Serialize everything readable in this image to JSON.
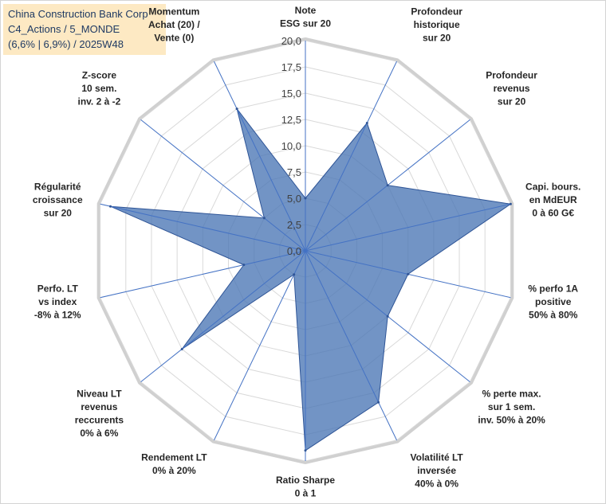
{
  "info": {
    "line1": "China Construction Bank Corp",
    "line2": "C4_Actions / 5_MONDE",
    "line3": "(6,6% | 6,9%) / 2025W48"
  },
  "chart_data": {
    "type": "radar",
    "title": "",
    "rmax": 20,
    "tick_step": 2.5,
    "ticks": [
      "0,0",
      "2,5",
      "5,0",
      "7,5",
      "10,0",
      "12,5",
      "15,0",
      "17,5",
      "20,0"
    ],
    "axes": [
      {
        "label": [
          "Note",
          "ESG sur 20"
        ],
        "value": 5.0
      },
      {
        "label": [
          "Profondeur",
          "historique",
          "sur 20"
        ],
        "value": 13.5
      },
      {
        "label": [
          "Profondeur",
          "revenus",
          "sur 20"
        ],
        "value": 10.0
      },
      {
        "label": [
          "Capi. bours.",
          "en MdEUR",
          "0 à 60 G€"
        ],
        "value": 20.0
      },
      {
        "label": [
          "% perfo 1A",
          "positive",
          "50% à 80%"
        ],
        "value": 10.0
      },
      {
        "label": [
          "% perte max.",
          "sur 1 sem.",
          "inv. 50% à 20%"
        ],
        "value": 10.0
      },
      {
        "label": [
          "Volatilité LT",
          "inversée",
          "40% à 0%"
        ],
        "value": 16.0
      },
      {
        "label": [
          "Ratio Sharpe",
          "0 à 1"
        ],
        "value": 19.0
      },
      {
        "label": [
          "Rendement LT",
          "0% à 20%"
        ],
        "value": 2.5
      },
      {
        "label": [
          "Niveau LT",
          "revenus",
          "reccurents",
          "0% à 6%"
        ],
        "value": 15.0
      },
      {
        "label": [
          "Perfo. LT",
          "vs index",
          "-8% à 12%"
        ],
        "value": 6.0
      },
      {
        "label": [
          "Régularité",
          "croissance",
          "sur 20"
        ],
        "value": 19.0
      },
      {
        "label": [
          "Z-score",
          "10 sem.",
          "inv. 2 à -2"
        ],
        "value": 5.0
      },
      {
        "label": [
          "Momentum",
          "Achat (20) /",
          "Vente (0)"
        ],
        "value": 15.0
      }
    ],
    "colors": {
      "fill": "#4a76b5",
      "fill_opacity": "0.78",
      "stroke": "#2f5597",
      "grid": "#d9d9d9",
      "outer_ring": "#d0d0d0",
      "axis": "#4472c4"
    }
  }
}
